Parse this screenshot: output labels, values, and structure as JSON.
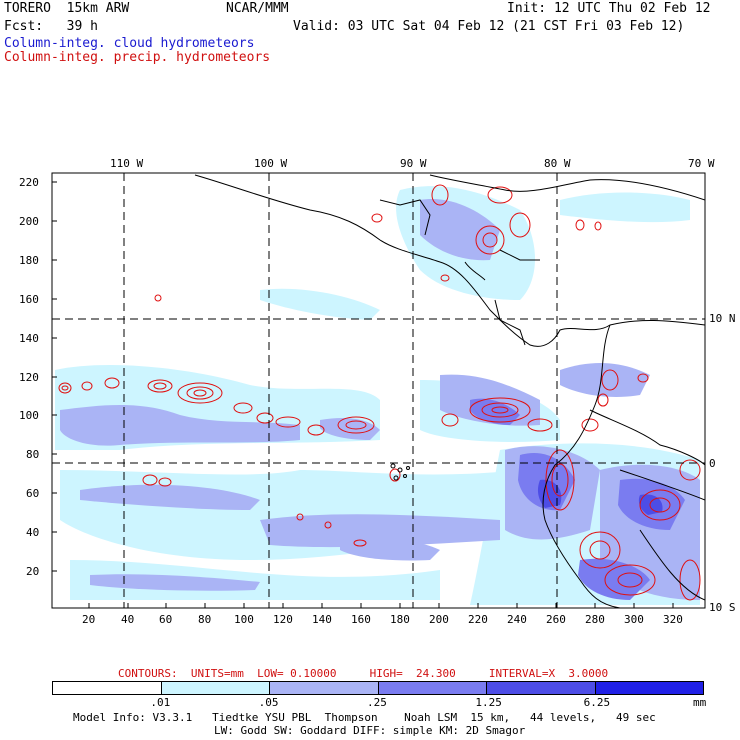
{
  "header": {
    "model": "TORERO  15km ARW",
    "org": "NCAR/MMM",
    "init": "Init: 12 UTC Thu 02 Feb 12",
    "fcst": "Fcst:   39 h",
    "valid": "Valid: 03 UTC Sat 04 Feb 12 (21 CST Fri 03 Feb 12)",
    "field1": "Column-integ. cloud hydrometeors",
    "field2": "Column-integ. precip. hydrometeors"
  },
  "map": {
    "top_lon_labels": [
      "110 W",
      "100 W",
      "90 W",
      "80 W",
      "70 W"
    ],
    "right_lat_labels": [
      "10 N",
      "0",
      "10 S"
    ],
    "y_ticks": [
      "20",
      "40",
      "60",
      "80",
      "100",
      "120",
      "140",
      "160",
      "180",
      "200",
      "220"
    ],
    "x_ticks": [
      "20",
      "40",
      "60",
      "80",
      "100",
      "120",
      "140",
      "160",
      "180",
      "200",
      "220",
      "240",
      "260",
      "280",
      "300",
      "320"
    ]
  },
  "contour_info": {
    "label": "CONTOURS:  UNITS=mm  LOW= 0.10000     HIGH=  24.300     INTERVAL=X  3.0000"
  },
  "colorbar": {
    "colors": [
      "#ffffff",
      "#cdf5ff",
      "#aab4f5",
      "#7a7cf0",
      "#4d4de6",
      "#2020e6"
    ],
    "labels": [
      ".01",
      ".05",
      ".25",
      "1.25",
      "6.25"
    ],
    "units": "mm"
  },
  "footer": {
    "line1": "Model Info: V3.3.1   Tiedtke YSU PBL  Thompson    Noah LSM  15 km,   44 levels,   49 sec",
    "line2": "LW: Godd SW: Goddard DIFF: simple KM: 2D Smagor"
  }
}
